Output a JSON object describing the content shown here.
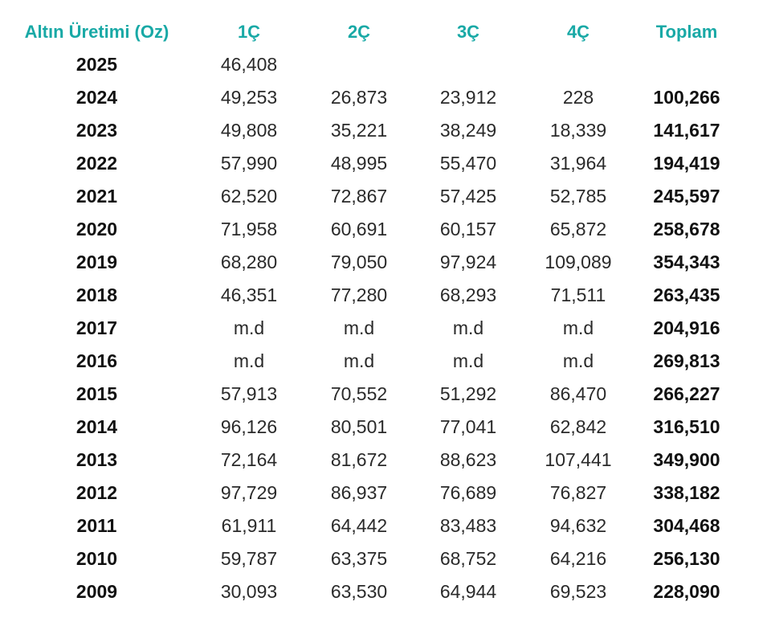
{
  "header": {
    "label": "Altın Üretimi (Oz)",
    "q1": "1Ç",
    "q2": "2Ç",
    "q3": "3Ç",
    "q4": "4Ç",
    "total": "Toplam"
  },
  "colors": {
    "header_accent": "#19a9a6",
    "text": "#1a1a1a"
  },
  "rows": [
    {
      "year": "2025",
      "q1": "46,408",
      "q2": "",
      "q3": "",
      "q4": "",
      "total": ""
    },
    {
      "year": "2024",
      "q1": "49,253",
      "q2": "26,873",
      "q3": "23,912",
      "q4": "228",
      "total": "100,266"
    },
    {
      "year": "2023",
      "q1": "49,808",
      "q2": "35,221",
      "q3": "38,249",
      "q4": "18,339",
      "total": "141,617"
    },
    {
      "year": "2022",
      "q1": "57,990",
      "q2": "48,995",
      "q3": "55,470",
      "q4": "31,964",
      "total": "194,419"
    },
    {
      "year": "2021",
      "q1": "62,520",
      "q2": "72,867",
      "q3": "57,425",
      "q4": "52,785",
      "total": "245,597"
    },
    {
      "year": "2020",
      "q1": "71,958",
      "q2": "60,691",
      "q3": "60,157",
      "q4": "65,872",
      "total": "258,678"
    },
    {
      "year": "2019",
      "q1": "68,280",
      "q2": "79,050",
      "q3": "97,924",
      "q4": "109,089",
      "total": "354,343"
    },
    {
      "year": "2018",
      "q1": "46,351",
      "q2": "77,280",
      "q3": "68,293",
      "q4": "71,511",
      "total": "263,435"
    },
    {
      "year": "2017",
      "q1": "m.d",
      "q2": "m.d",
      "q3": "m.d",
      "q4": "m.d",
      "total": "204,916"
    },
    {
      "year": "2016",
      "q1": "m.d",
      "q2": "m.d",
      "q3": "m.d",
      "q4": "m.d",
      "total": "269,813"
    },
    {
      "year": "2015",
      "q1": "57,913",
      "q2": "70,552",
      "q3": "51,292",
      "q4": "86,470",
      "total": "266,227"
    },
    {
      "year": "2014",
      "q1": "96,126",
      "q2": "80,501",
      "q3": "77,041",
      "q4": "62,842",
      "total": "316,510"
    },
    {
      "year": "2013",
      "q1": "72,164",
      "q2": "81,672",
      "q3": "88,623",
      "q4": "107,441",
      "total": "349,900"
    },
    {
      "year": "2012",
      "q1": "97,729",
      "q2": "86,937",
      "q3": "76,689",
      "q4": "76,827",
      "total": "338,182"
    },
    {
      "year": "2011",
      "q1": "61,911",
      "q2": "64,442",
      "q3": "83,483",
      "q4": "94,632",
      "total": "304,468"
    },
    {
      "year": "2010",
      "q1": "59,787",
      "q2": "63,375",
      "q3": "68,752",
      "q4": "64,216",
      "total": "256,130"
    },
    {
      "year": "2009",
      "q1": "30,093",
      "q2": "63,530",
      "q3": "64,944",
      "q4": "69,523",
      "total": "228,090"
    }
  ]
}
